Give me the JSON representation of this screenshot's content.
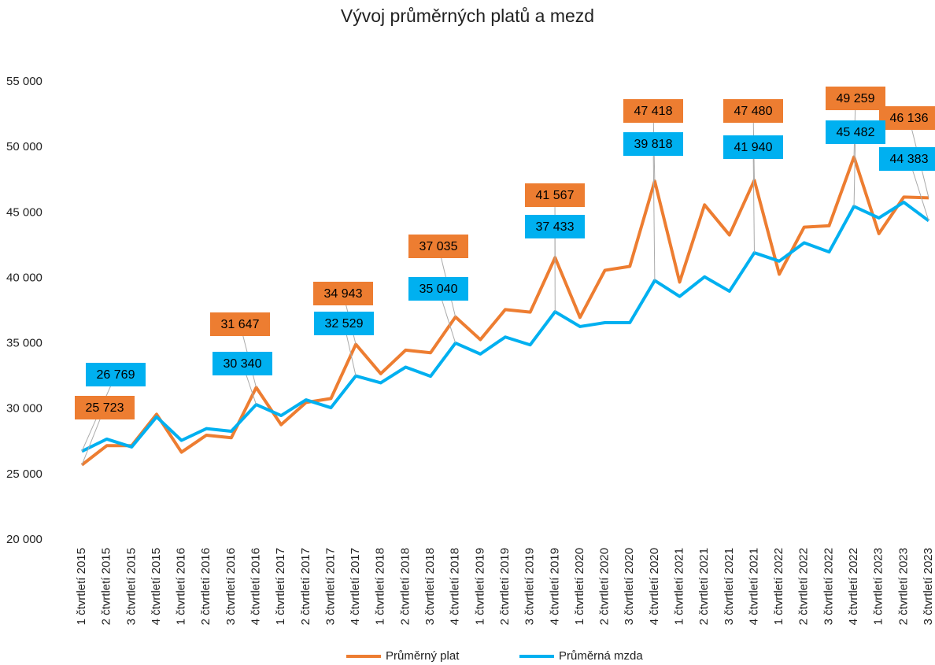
{
  "chart_data": {
    "type": "line",
    "title": "Vývoj průměrných platů a mezd",
    "categories": [
      "1 čtvrtletí 2015",
      "2 čtvrtletí 2015",
      "3 čtvrtletí 2015",
      "4 čtvrtletí 2015",
      "1 čtvrtletí 2016",
      "2 čtvrtletí 2016",
      "3 čtvrtletí 2016",
      "4 čtvrtletí 2016",
      "1 čtvrtletí 2017",
      "2 čtvrtletí 2017",
      "3 čtvrtletí 2017",
      "4 čtvrtletí 2017",
      "1 čtvrtletí 2018",
      "2 čtvrtletí 2018",
      "3 čtvrtletí 2018",
      "4 čtvrtletí 2018",
      "1 čtvrtletí 2019",
      "2 čtvrtletí 2019",
      "3 čtvrtletí 2019",
      "4 čtvrtletí 2019",
      "1 čtvrtletí 2020",
      "2 čtvrtletí 2020",
      "3 čtvrtletí 2020",
      "4 čtvrtletí 2020",
      "1 čtvrtletí 2021",
      "2 čtvrtletí 2021",
      "3 čtvrtletí 2021",
      "4 čtvrtletí 2021",
      "1 čtvrtletí 2022",
      "2 čtvrtletí 2022",
      "3 čtvrtletí 2022",
      "4 čtvrtletí 2022",
      "1 čtvrtletí 2023",
      "2 čtvrtletí 2023",
      "3 čtvrtletí 2023"
    ],
    "series": [
      {
        "name": "Průměrný plat",
        "color": "#ed7d31",
        "values": [
          25723,
          27200,
          27200,
          29600,
          26700,
          28000,
          27800,
          31647,
          28800,
          30500,
          30800,
          34943,
          32700,
          34500,
          34300,
          37035,
          35300,
          37600,
          37400,
          41567,
          37000,
          40600,
          40900,
          47418,
          39700,
          45600,
          43300,
          47480,
          40300,
          43900,
          44000,
          49259,
          43400,
          46200,
          46136
        ],
        "value_labels": [
          "25 723",
          null,
          null,
          null,
          null,
          null,
          null,
          "31 647",
          null,
          null,
          null,
          "34 943",
          null,
          null,
          null,
          "37 035",
          null,
          null,
          null,
          "41 567",
          null,
          null,
          null,
          "47 418",
          null,
          null,
          null,
          "47 480",
          null,
          null,
          null,
          "49 259",
          null,
          null,
          "46 136"
        ]
      },
      {
        "name": "Průměrná mzda",
        "color": "#00b0f0",
        "values": [
          26769,
          27700,
          27100,
          29400,
          27600,
          28500,
          28300,
          30340,
          29500,
          30700,
          30100,
          32529,
          32000,
          33200,
          32500,
          35040,
          34200,
          35500,
          34900,
          37433,
          36300,
          36600,
          36600,
          39818,
          38600,
          40100,
          39000,
          41940,
          41300,
          42700,
          42000,
          45482,
          44600,
          45800,
          44383
        ],
        "value_labels": [
          "26 769",
          null,
          null,
          null,
          null,
          null,
          null,
          "30 340",
          null,
          null,
          null,
          "32 529",
          null,
          null,
          null,
          "35 040",
          null,
          null,
          null,
          "37 433",
          null,
          null,
          null,
          "39 818",
          null,
          null,
          null,
          "41 940",
          null,
          null,
          null,
          "45 482",
          null,
          null,
          "44 383"
        ]
      }
    ],
    "ylim": [
      20000,
      55000
    ],
    "yticks": [
      {
        "value": 20000,
        "label": "20 000"
      },
      {
        "value": 25000,
        "label": "25 000"
      },
      {
        "value": 30000,
        "label": "30 000"
      },
      {
        "value": 35000,
        "label": "35 000"
      },
      {
        "value": 40000,
        "label": "40 000"
      },
      {
        "value": 45000,
        "label": "45 000"
      },
      {
        "value": 50000,
        "label": "50 000"
      },
      {
        "value": 55000,
        "label": "55 000"
      }
    ],
    "grid": false
  }
}
